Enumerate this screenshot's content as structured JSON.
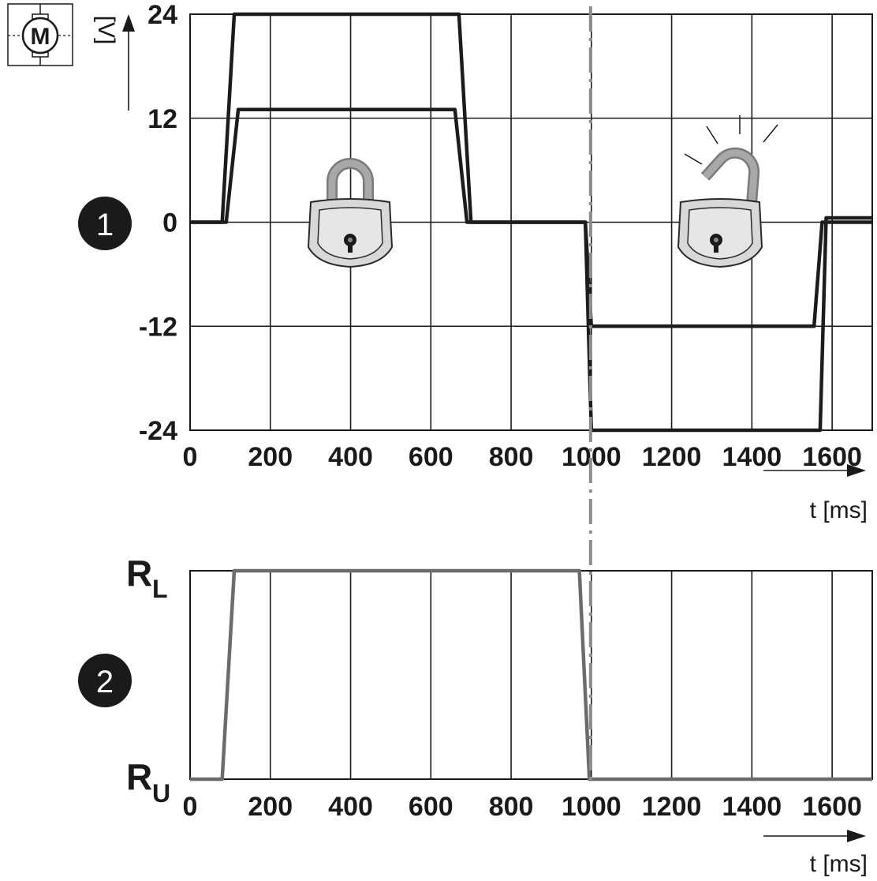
{
  "chart_data": [
    {
      "type": "line",
      "panel_marker": "1",
      "ylabel": "[V]",
      "xlabel": "t [ms]",
      "x_ticks": [
        "0",
        "200",
        "400",
        "600",
        "800",
        "1000",
        "1200",
        "1400",
        "1600"
      ],
      "y_ticks": [
        "24",
        "12",
        "0",
        "-12",
        "-24"
      ],
      "xlim": [
        0,
        1700
      ],
      "ylim": [
        -24,
        24
      ],
      "grid": true,
      "series": [
        {
          "x": [
            0,
            80,
            110,
            670,
            700,
            985,
            1000,
            1570,
            1585,
            1700
          ],
          "y": [
            0,
            0,
            24,
            24,
            0,
            0,
            -24,
            -24,
            0.5,
            0.5
          ]
        },
        {
          "x": [
            0,
            90,
            120,
            660,
            690,
            985,
            1000,
            1555,
            1575,
            1700
          ],
          "y": [
            0,
            0,
            13,
            13,
            0,
            0,
            -12,
            -12,
            0,
            0
          ]
        }
      ],
      "icons": [
        "motor-icon",
        "padlock-locked-icon",
        "padlock-unlocked-icon"
      ],
      "divider_x": 1000
    },
    {
      "type": "line",
      "panel_marker": "2",
      "xlabel": "t [ms]",
      "x_ticks": [
        "0",
        "200",
        "400",
        "600",
        "800",
        "1000",
        "1200",
        "1400",
        "1600"
      ],
      "y_ticks": [
        "R_L",
        "R_U"
      ],
      "xlim": [
        0,
        1700
      ],
      "grid": true,
      "series": [
        {
          "x": [
            0,
            80,
            110,
            970,
            995,
            1700
          ],
          "y": [
            "R_U",
            "R_U",
            "R_L",
            "R_L",
            "R_U",
            "R_U"
          ]
        }
      ]
    }
  ],
  "labels": {
    "motor_letter": "M",
    "r_top_main": "R",
    "r_top_sub": "L",
    "r_bot_main": "R",
    "r_bot_sub": "U"
  },
  "colors": {
    "line_dark": "#1c1c1c",
    "line_gray": "#6b6b6b",
    "divider": "#8c8c8c",
    "lock_body": "#d9d9d9",
    "lock_shackle": "#9a9a9a"
  }
}
